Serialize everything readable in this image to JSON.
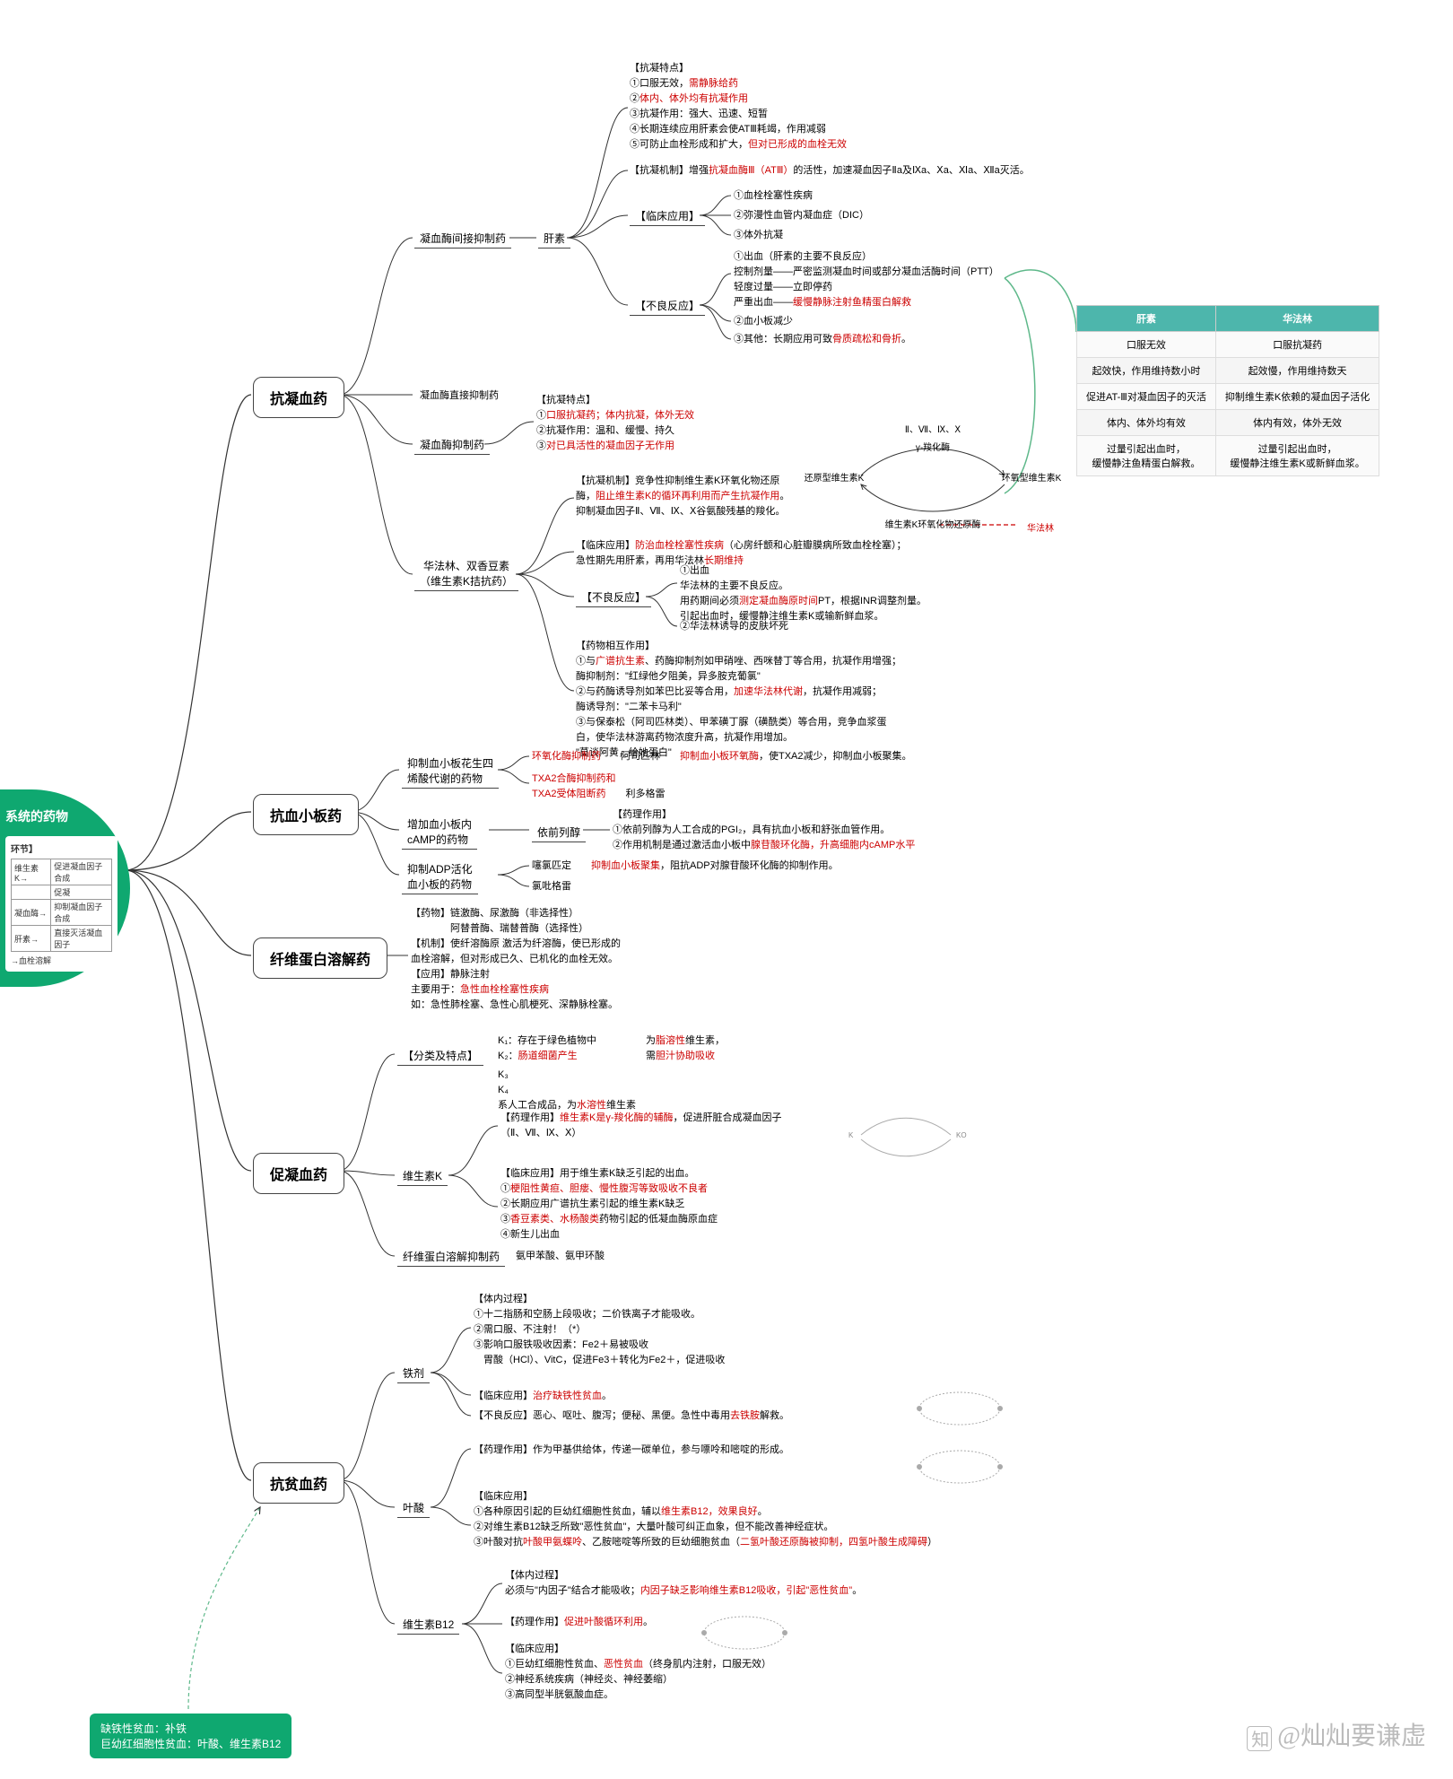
{
  "root": {
    "title": "系统的药物",
    "inset_title": "环节】",
    "inset_rows": [
      [
        "维生素K→",
        "促进凝血因子合成"
      ],
      [
        "",
        "促凝"
      ],
      [
        "凝血酶→",
        "抑制凝血因子合成"
      ],
      [
        "肝素→",
        "直接灭活凝血因子"
      ]
    ],
    "inset_footer": "→血栓溶解"
  },
  "categories": {
    "c1": "抗凝血药",
    "c2": "抗血小板药",
    "c3": "纤维蛋白溶解药",
    "c4": "促凝血药",
    "c5": "抗贫血药"
  },
  "sub": {
    "s1a": "凝血酶间接抑制药",
    "s1a2": "肝素",
    "s1b": "凝血酶直接抑制药",
    "s1c": "凝血酶抑制药",
    "s1d": "华法林、双香豆素\n（维生素K拮抗药）",
    "s2a": "抑制血小板花生四\n烯酸代谢的药物",
    "s2b": "增加血小板内\ncAMP的药物",
    "s2c": "抑制ADP活化\n血小板的药物",
    "s4a": "维生素K",
    "s4b": "纤维蛋白溶解抑制药",
    "s5a": "铁剂",
    "s5b": "叶酸",
    "s5c": "维生素B12"
  },
  "leaves": {
    "l1_tedian": "【抗凝特点】\n①口服无效，<span class='red'>需静脉给药</span>\n②<span class='red'>体内、体外均有抗凝作用</span>\n③抗凝作用：强大、迅速、短暂\n④长期连续应用肝素会使ATⅢ耗竭，作用减弱\n⑤可防止血栓形成和扩大，<span class='red'>但对已形成的血栓无效</span>",
    "l1_jizhi": "【抗凝机制】增强<span class='red'>抗凝血酶Ⅲ（ATⅢ）</span>的活性，加速凝血因子Ⅱa及Ⅸa、Ⅹa、Ⅺa、Ⅻa灭活。",
    "l1_lc_label": "【临床应用】",
    "l1_lc1": "①血栓栓塞性疾病",
    "l1_lc2": "②弥漫性血管内凝血症（DIC）",
    "l1_lc3": "③体外抗凝",
    "l1_bl_label": "【不良反应】",
    "l1_bl1": "①出血（肝素的主要不良反应）\n控制剂量——严密监测凝血时间或部分凝血活酶时间（PTT）\n轻度过量——立即停药\n严重出血——<span class='red'>缓慢静脉注射鱼精蛋白解救</span>",
    "l1_bl2": "②血小板减少",
    "l1_bl3": "③其他：长期应用可致<span class='red'>骨质疏松和骨折</span>。",
    "l1c_tedian": "【抗凝特点】\n①<span class='red'>口服抗凝药；体内抗凝，体外无效</span>\n②抗凝作用：温和、缓慢、持久\n③<span class='red'>对已具活性的凝血因子无作用</span>",
    "l1d_jizhi": "【抗凝机制】竞争性抑制维生素K环氧化物还原\n酶，<span class='red'>阻止维生素K的循环再利用而产生抗凝作用</span>。\n抑制凝血因子Ⅱ、Ⅶ、Ⅸ、Ⅹ谷氨酸残基的羧化。",
    "l1d_lc": "【临床应用】<span class='red'>防治血栓栓塞性疾病</span>（心房纤颤和心脏瓣膜病所致血栓栓塞）；\n急性期先用肝素，再用华法林<span class='red'>长期维持</span>",
    "l1d_bl_label": "【不良反应】",
    "l1d_bl1": "①出血\n华法林的主要不良反应。\n用药期间必须<span class='red'>测定凝血酶原时间</span>PT，根据INR调整剂量。\n引起出血时，缓慢静注维生素K或输新鲜血浆。",
    "l1d_bl2": "②华法林诱导的皮肤坏死",
    "l1d_hz": "【药物相互作用】\n①与<span class='red'>广谱抗生素</span>、药酶抑制剂如甲硝唑、西咪替丁等合用，抗凝作用增强；\n酶抑制剂：\"红绿他夕阻美，异多胺克葡氯\"\n②与药酶诱导剂如苯巴比妥等合用，<span class='red'>加速华法林代谢</span>，抗凝作用减弱；\n酶诱导剂：\"二苯卡马利\"\n③与保泰松（阿司匹林类）、甲苯磺丁脲（磺酰类）等合用，竞争血浆蛋\n白，使华法林游离药物浓度升高，抗凝作用增加。\n\"莫谈阿黄，给她蛋白\"",
    "l2a_1": "<span class='red'>环氧化酶抑制药</span>　　阿司匹林　　<span class='red'>抑制血小板环氧酶</span>，使TXA2减少，抑制血小板聚集。",
    "l2a_2": "<span class='red'>TXA2合酶抑制药和\nTXA2受体阻断药</span>　　利多格雷",
    "l2b_1": "依前列醇",
    "l2b_2": "【药理作用】\n①依前列醇为人工合成的PGI₂，具有抗血小板和舒张血管作用。\n②作用机制是通过激活血小板中<span class='red'>腺苷酸环化酶，升高细胞内cAMP水平</span>",
    "l2c_1": "噻氯匹定　　<span class='red'>抑制血小板聚集</span>，阻抗ADP对腺苷酸环化酶的抑制作用。",
    "l2c_2": "氯吡格雷",
    "l3": "【药物】链激酶、尿激酶（非选择性）\n　　　　阿替普酶、瑞替普酶（选择性）\n【机制】使纤溶酶原 激活为纤溶酶，使已形成的\n血栓溶解，但对形成已久、已机化的血栓无效。\n【应用】静脉注射\n主要用于：<span class='red'>急性血栓栓塞性疾病</span>\n如：急性肺栓塞、急性心肌梗死、深静脉栓塞。",
    "l4_top": "【分类及特点】",
    "l4_top_k12": "K₁：存在于绿色植物中\nK₂：<span class='red'>肠道细菌产生</span>",
    "l4_top_k12r": "为<span class='red'>脂溶性</span>维生素，\n需<span class='red'>胆汁协助吸收</span>",
    "l4_top_k34": "K₃\nK₄\n系人工合成品，为<span class='red'>水溶性</span>维生素",
    "l4a_yl": "【药理作用】<span class='red'>维生素K是γ-羧化酶的辅酶</span>，促进肝脏合成凝血因子\n（Ⅱ、Ⅶ、Ⅸ、Ⅹ）",
    "l4a_lc": "【临床应用】用于维生素K缺乏引起的出血。\n①<span class='red'>梗阻性黄疸、胆瘘、慢性腹泻等致吸收不良者</span>\n②长期应用广谱抗生素引起的维生素K缺乏\n③<span class='red'>香豆素类、水杨酸类</span>药物引起的低凝血酶原血症\n④新生儿出血",
    "l4b": "氨甲苯酸、氨甲环酸",
    "l5a_tn": "【体内过程】\n①十二指肠和空肠上段吸收；二价铁离子才能吸收。\n②需口服、不注射！（*）\n③影响口服铁吸收因素：Fe2＋易被吸收\n　胃酸（HCl）、VitC，促进Fe3＋转化为Fe2＋，促进吸收",
    "l5a_lc": "【临床应用】<span class='red'>治疗缺铁性贫血</span>。",
    "l5a_bl": "【不良反应】恶心、呕吐、腹泻；便秘、黑便。急性中毒用<span class='red'>去铁胺</span>解救。",
    "l5b_yl": "【药理作用】作为甲基供给体，传递一碳单位，参与嘌呤和嘧啶的形成。",
    "l5b_lc": "【临床应用】\n①各种原因引起的巨幼红细胞性贫血，辅以<span class='red'>维生素B12，效果良好</span>。\n②对维生素B12缺乏所致\"恶性贫血\"，大量叶酸可纠正血象，但不能改善神经症状。\n③叶酸对抗<span class='red'>叶酸甲氨蝶呤</span>、乙胺嘧啶等所致的巨幼细胞贫血（<span class='red'>二氢叶酸还原酶被抑制，四氢叶酸生成障碍</span>）",
    "l5c_tn": "【体内过程】\n必须与\"内因子\"结合才能吸收；<span class='red'>内因子缺乏影响维生素B12吸收，引起\"恶性贫血\"</span>。",
    "l5c_yl": "【药理作用】<span class='red'>促进叶酸循环利用</span>。",
    "l5c_lc": "【临床应用】\n①巨幼红细胞性贫血、<span class='red'>恶性贫血</span>（终身肌内注射，口服无效）\n②神经系统疾病（神经炎、神经萎缩）\n③高同型半胱氨酸血症。"
  },
  "comparison": {
    "h1": "肝素",
    "h2": "华法林",
    "rows": [
      [
        "口服无效",
        "口服抗凝药"
      ],
      [
        "起效快，作用维持数小时",
        "起效慢，作用维持数天"
      ],
      [
        "促进AT-Ⅲ对凝血因子的灭活",
        "抑制维生素K依赖的凝血因子活化"
      ],
      [
        "体内、体外均有效",
        "体内有效，体外无效"
      ],
      [
        "过量引起出血时，\n缓慢静注鱼精蛋白解救。",
        "过量引起出血时，\n缓慢静注维生素K或新鲜血浆。"
      ]
    ]
  },
  "cycle": {
    "left": "还原型维生素K",
    "right": "环氧型维生素K",
    "top": "γ-羧化酶",
    "topfactors": "Ⅱ、Ⅶ、Ⅸ、Ⅹ",
    "bottom": "维生素K环氧化物还原酶",
    "drug": "华法林"
  },
  "bottom_note": "缺铁性贫血：补铁\n巨幼红细胞性贫血：叶酸、维生素B12",
  "watermark": "@灿灿要谦虚",
  "colors": {
    "green": "#0fa870",
    "red": "#cc0000",
    "teal": "#4db6ac",
    "link_dash": "#5eb88a"
  }
}
